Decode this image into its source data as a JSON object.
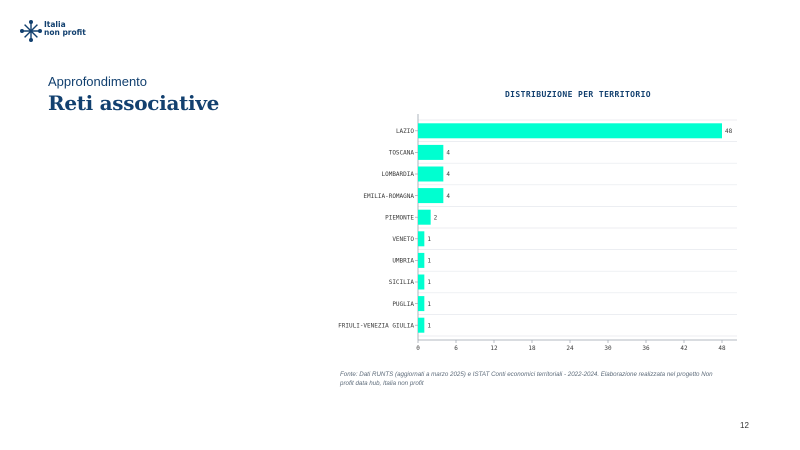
{
  "logo": {
    "line1": "Italia",
    "line2": "non profit",
    "icon": "asterisk-star-icon",
    "color": "#12406f"
  },
  "header": {
    "eyebrow": "Approfondimento",
    "title": "Reti associative"
  },
  "chart_data": {
    "type": "bar",
    "orientation": "horizontal",
    "title": "DISTRIBUZIONE PER TERRITORIO",
    "categories": [
      "LAZIO",
      "TOSCANA",
      "LOMBARDIA",
      "EMILIA-ROMAGNA",
      "PIEMONTE",
      "VENETO",
      "UMBRIA",
      "SICILIA",
      "PUGLIA",
      "FRIULI-VENEZIA GIULIA"
    ],
    "values": [
      48,
      4,
      4,
      4,
      2,
      1,
      1,
      1,
      1,
      1
    ],
    "xlim": [
      0,
      48
    ],
    "xticks": [
      0,
      6,
      12,
      18,
      24,
      30,
      36,
      42,
      48
    ],
    "bar_color": "#00ffd0",
    "grid": "horizontal",
    "data_labels": true
  },
  "footer": {
    "source": "Fonte: Dati RUNTS (aggiornati a marzo 2025) e ISTAT Conti economici territoriali - 2022-2024. Elaborazione realizzata nel progetto Non profit data hub, Italia non profit",
    "page": "12"
  }
}
